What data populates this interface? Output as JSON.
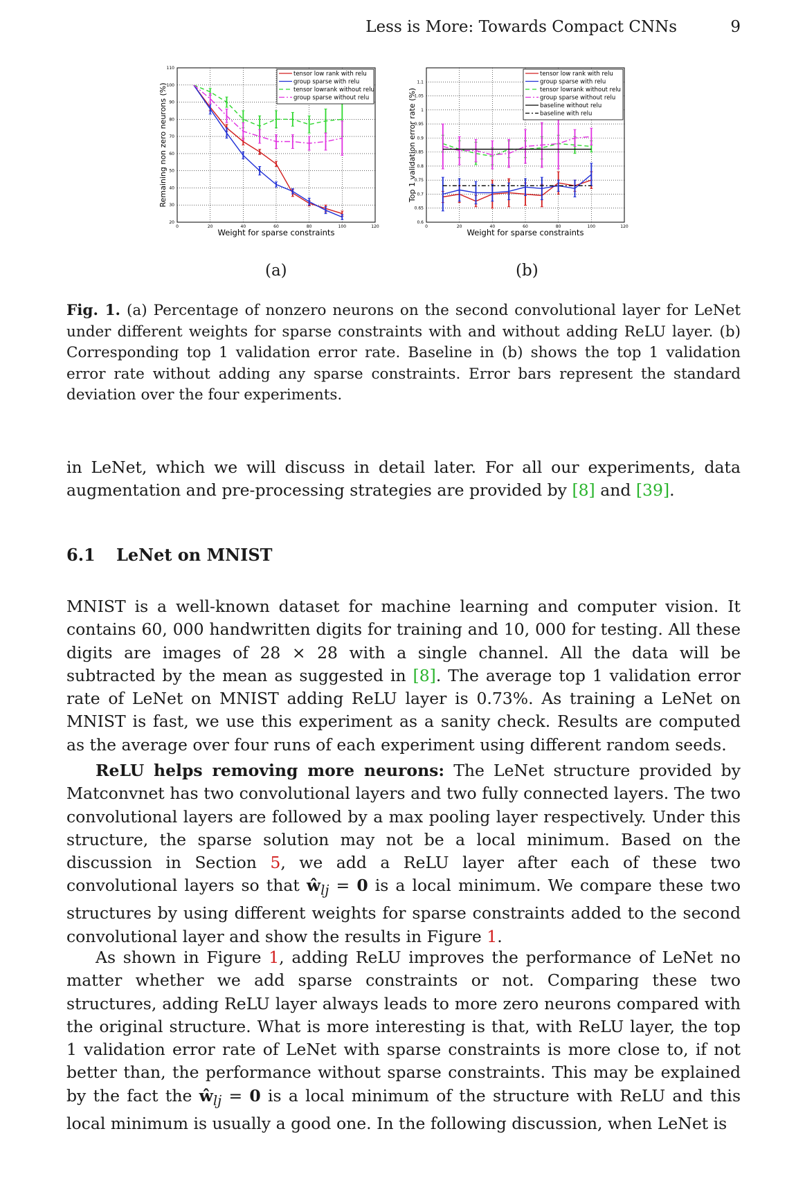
{
  "header": {
    "running_title": "Less is More: Towards Compact CNNs",
    "page_number": "9"
  },
  "figure": {
    "subcaption_a": "(a)",
    "subcaption_b": "(b)",
    "caption_label": "Fig. 1.",
    "caption_text": " (a) Percentage of nonzero neurons on the second convolutional layer for LeNet under different weights for sparse constraints with and without adding ReLU layer. (b) Corresponding top 1 validation error rate. Baseline in (b) shows the top 1 validation error rate without adding any sparse constraints. Error bars represent the standard deviation over the four experiments."
  },
  "colors": {
    "red": "#d21e1e",
    "blue": "#1f2fd6",
    "green": "#2ed62e",
    "magenta": "#e030e0",
    "black": "#000000",
    "citation_green": "#29b42c",
    "reference_red": "#d21e1e"
  },
  "chart_data": [
    {
      "type": "line",
      "panel": "a",
      "title": "",
      "xlabel": "Weight for sparse constraints",
      "ylabel": "Remaining non zero neurons (%)",
      "xlim": [
        0,
        120
      ],
      "ylim": [
        20,
        110
      ],
      "xticks": [
        0,
        20,
        40,
        60,
        80,
        100,
        120
      ],
      "yticks": [
        20,
        30,
        40,
        50,
        60,
        70,
        80,
        90,
        100,
        110
      ],
      "grid": true,
      "legend_position": "top-right",
      "series": [
        {
          "name": "tensor low rank with relu",
          "color": "#d21e1e",
          "dash": "solid",
          "x": [
            10,
            20,
            30,
            40,
            50,
            60,
            70,
            80,
            90,
            100
          ],
          "y": [
            100,
            87,
            75,
            67,
            61,
            54,
            37,
            31,
            28,
            25
          ],
          "err": [
            0,
            2,
            2,
            2,
            1.5,
            1.5,
            2,
            1.5,
            2,
            1.5
          ]
        },
        {
          "name": "group sparse with relu",
          "color": "#1f2fd6",
          "dash": "solid",
          "x": [
            10,
            20,
            30,
            40,
            50,
            60,
            70,
            80,
            90,
            100
          ],
          "y": [
            100,
            86,
            72,
            59,
            50,
            42,
            38,
            32,
            27,
            23
          ],
          "err": [
            0,
            3,
            3,
            2,
            2.5,
            1.5,
            1.5,
            2,
            2,
            1.5
          ]
        },
        {
          "name": "tensor lowrank without relu",
          "color": "#2ed62e",
          "dash": "6,4",
          "x": [
            10,
            20,
            30,
            40,
            50,
            60,
            70,
            80,
            90,
            100
          ],
          "y": [
            100,
            96,
            90,
            80,
            76,
            80,
            80,
            77,
            79,
            80
          ],
          "err": [
            0,
            2,
            3,
            5,
            6,
            5,
            4,
            5,
            7,
            10
          ]
        },
        {
          "name": "group sparse without relu",
          "color": "#e030e0",
          "dash": "8,3,2,3",
          "x": [
            10,
            20,
            30,
            40,
            50,
            60,
            70,
            80,
            90,
            100
          ],
          "y": [
            100,
            92,
            82,
            73,
            70,
            67,
            67,
            66,
            67,
            69
          ],
          "err": [
            0,
            3,
            4,
            5,
            4,
            4,
            4,
            4,
            5,
            10
          ]
        }
      ]
    },
    {
      "type": "line",
      "panel": "b",
      "title": "",
      "xlabel": "Weight for sparse constraints",
      "ylabel": "Top 1 validation error rate (%)",
      "xlim": [
        0,
        120
      ],
      "ylim": [
        0.6,
        1.15
      ],
      "xticks": [
        0,
        20,
        40,
        60,
        80,
        100,
        120
      ],
      "yticks": [
        0.6,
        0.65,
        0.7,
        0.75,
        0.8,
        0.85,
        0.9,
        0.95,
        1,
        1.05,
        1.1
      ],
      "grid": true,
      "legend_position": "top-right",
      "series": [
        {
          "name": "tensor low rank with relu",
          "color": "#d21e1e",
          "dash": "solid",
          "x": [
            10,
            20,
            30,
            40,
            50,
            60,
            70,
            80,
            90,
            100
          ],
          "y": [
            0.69,
            0.7,
            0.675,
            0.7,
            0.705,
            0.7,
            0.695,
            0.74,
            0.73,
            0.75
          ],
          "err": [
            0.02,
            0.03,
            0.02,
            0.05,
            0.05,
            0.04,
            0.04,
            0.04,
            0.02,
            0.03
          ]
        },
        {
          "name": "group sparse with relu",
          "color": "#1f2fd6",
          "dash": "solid",
          "x": [
            10,
            20,
            30,
            40,
            50,
            60,
            70,
            80,
            90,
            100
          ],
          "y": [
            0.7,
            0.715,
            0.705,
            0.705,
            0.71,
            0.725,
            0.72,
            0.73,
            0.72,
            0.77
          ],
          "err": [
            0.06,
            0.04,
            0.04,
            0.03,
            0.03,
            0.03,
            0.04,
            0.02,
            0.03,
            0.04
          ]
        },
        {
          "name": "tensor lowrank without relu",
          "color": "#2ed62e",
          "dash": "6,4",
          "x": [
            10,
            20,
            30,
            40,
            50,
            60,
            70,
            80,
            90,
            100
          ],
          "y": [
            0.88,
            0.86,
            0.845,
            0.835,
            0.86,
            0.86,
            0.865,
            0.88,
            0.875,
            0.87
          ],
          "err": [
            0.03,
            0.03,
            0.04,
            0.03,
            0.03,
            0.03,
            0.04,
            0.03,
            0.03,
            0.02
          ]
        },
        {
          "name": "group sparse without relu",
          "color": "#e030e0",
          "dash": "8,3,2,3",
          "x": [
            10,
            20,
            30,
            40,
            50,
            60,
            70,
            80,
            90,
            100
          ],
          "y": [
            0.87,
            0.855,
            0.855,
            0.84,
            0.845,
            0.87,
            0.875,
            0.88,
            0.9,
            0.905
          ],
          "err": [
            0.08,
            0.05,
            0.04,
            0.05,
            0.05,
            0.06,
            0.08,
            0.09,
            0.03,
            0.03
          ]
        },
        {
          "name": "baseline without relu",
          "color": "#000000",
          "dash": "solid",
          "x": [
            10,
            100
          ],
          "y": [
            0.86,
            0.86
          ],
          "err": [
            0,
            0
          ]
        },
        {
          "name": "baseline with relu",
          "color": "#000000",
          "dash": "6,3,2,3",
          "x": [
            10,
            100
          ],
          "y": [
            0.73,
            0.73
          ],
          "err": [
            0,
            0
          ]
        }
      ]
    }
  ],
  "body": {
    "p1": "in LeNet, which we will discuss in detail later. For all our experiments, data augmentation and pre-processing strategies are provided by ",
    "p1_cite1": "[8]",
    "p1_and": " and ",
    "p1_cite2": "[39]",
    "p1_end": ".",
    "section_number": "6.1",
    "section_title": "LeNet on MNIST",
    "p2_a": "MNIST is a well-known dataset for machine learning and computer vision. It contains 60, 000 handwritten digits for training and 10, 000 for testing. All these digits are images of 28 × 28 with a single channel. All the data will be subtracted by the mean as suggested in ",
    "p2_cite": "[8]",
    "p2_b": ". The average top 1 validation error rate of LeNet on MNIST adding ReLU layer is 0.73%. As training a LeNet on MNIST is fast, we use this experiment as a sanity check. Results are computed as the average over four runs of each experiment using different random seeds.",
    "p3_lead": "ReLU helps removing more neurons:",
    "p3_a": " The LeNet structure provided by Matconvnet has two convolutional layers and two fully connected layers. The two convolutional layers are followed by a max pooling layer respectively. Under this structure, the sparse solution may not be a local minimum. Based on the discussion in Section ",
    "p3_ref1": "5",
    "p3_b": ", we add a ReLU layer after each of these two convolutional layers so that ",
    "p3_math_w": "ŵ",
    "p3_math_sub": "lj",
    "p3_math_eq": " = ",
    "p3_math_zero": "0",
    "p3_c": " is a local minimum. We compare these two structures by using different weights for sparse constraints added to the second convolutional layer and show the results in Figure ",
    "p3_ref2": "1",
    "p3_end": ".",
    "p4_a": "As shown in Figure ",
    "p4_ref": "1",
    "p4_b": ", adding ReLU improves the performance of LeNet no matter whether we add sparse constraints or not. Comparing these two structures, adding ReLU layer always leads to more zero neurons compared with the original structure. What is more interesting is that, with ReLU layer, the top 1 validation error rate of LeNet with sparse constraints is more close to, if not better than, the performance without sparse constraints. This may be explained by the fact the ",
    "p4_math_w": "ŵ",
    "p4_math_sub": "lj",
    "p4_math_eq": " = ",
    "p4_math_zero": "0",
    "p4_c": " is a local minimum of the structure with ReLU and this local minimum is usually a good one. In the following discussion, when LeNet is"
  }
}
